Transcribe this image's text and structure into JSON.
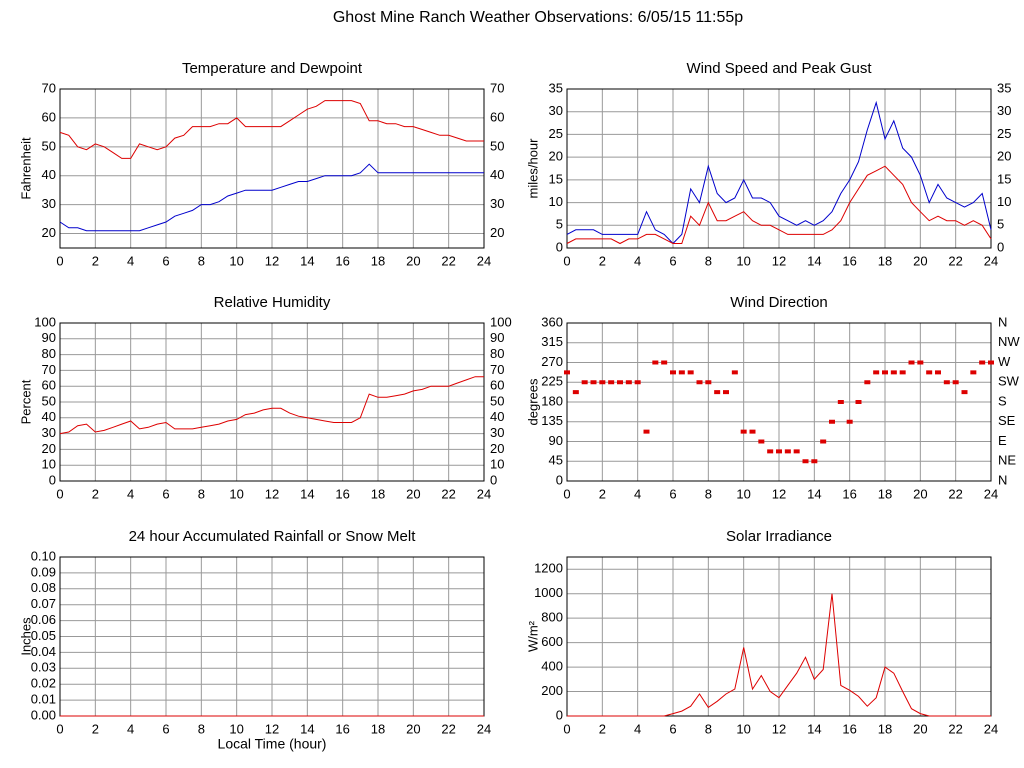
{
  "title": "Ghost Mine Ranch Weather Observations: 6/05/15 11:55p",
  "chart_data": [
    {
      "type": "line",
      "title": "Temperature and Dewpoint",
      "ylabel": "Fahrenheit",
      "grid": true,
      "right_axis": true,
      "xlim": [
        0,
        24
      ],
      "xticks": [
        0,
        2,
        4,
        6,
        8,
        10,
        12,
        14,
        16,
        18,
        20,
        22,
        24
      ],
      "ylim": [
        15,
        70
      ],
      "yticks": [
        20,
        30,
        40,
        50,
        60,
        70
      ],
      "x": [
        0,
        0.5,
        1,
        1.5,
        2,
        2.5,
        3,
        3.5,
        4,
        4.5,
        5,
        5.5,
        6,
        6.5,
        7,
        7.5,
        8,
        8.5,
        9,
        9.5,
        10,
        10.5,
        11,
        11.5,
        12,
        12.5,
        13,
        13.5,
        14,
        14.5,
        15,
        15.5,
        16,
        16.5,
        17,
        17.5,
        18,
        18.5,
        19,
        19.5,
        20,
        20.5,
        21,
        21.5,
        22,
        22.5,
        23,
        23.5,
        24
      ],
      "series": [
        {
          "color": "#dd0000",
          "values": [
            55,
            54,
            50,
            49,
            51,
            50,
            48,
            46,
            46,
            51,
            50,
            49,
            50,
            53,
            54,
            57,
            57,
            57,
            58,
            58,
            60,
            57,
            57,
            57,
            57,
            57,
            59,
            61,
            63,
            64,
            66,
            66,
            66,
            66,
            65,
            59,
            59,
            58,
            58,
            57,
            57,
            56,
            55,
            54,
            54,
            53,
            52,
            52,
            52
          ]
        },
        {
          "color": "#0000cc",
          "values": [
            24,
            22,
            22,
            21,
            21,
            21,
            21,
            21,
            21,
            21,
            22,
            23,
            24,
            26,
            27,
            28,
            30,
            30,
            31,
            33,
            34,
            35,
            35,
            35,
            35,
            36,
            37,
            38,
            38,
            39,
            40,
            40,
            40,
            40,
            41,
            44,
            41,
            41,
            41,
            41,
            41,
            41,
            41,
            41,
            41,
            41,
            41,
            41,
            41
          ]
        }
      ]
    },
    {
      "type": "line",
      "title": "Wind Speed and Peak Gust",
      "ylabel": "miles/hour",
      "grid": true,
      "right_axis": true,
      "xlim": [
        0,
        24
      ],
      "xticks": [
        0,
        2,
        4,
        6,
        8,
        10,
        12,
        14,
        16,
        18,
        20,
        22,
        24
      ],
      "ylim": [
        0,
        35
      ],
      "yticks": [
        0,
        5,
        10,
        15,
        20,
        25,
        30,
        35
      ],
      "x": [
        0,
        0.5,
        1,
        1.5,
        2,
        2.5,
        3,
        3.5,
        4,
        4.5,
        5,
        5.5,
        6,
        6.5,
        7,
        7.5,
        8,
        8.5,
        9,
        9.5,
        10,
        10.5,
        11,
        11.5,
        12,
        12.5,
        13,
        13.5,
        14,
        14.5,
        15,
        15.5,
        16,
        16.5,
        17,
        17.5,
        18,
        18.5,
        19,
        19.5,
        20,
        20.5,
        21,
        21.5,
        22,
        22.5,
        23,
        23.5,
        24
      ],
      "series": [
        {
          "color": "#0000cc",
          "values": [
            3,
            4,
            4,
            4,
            3,
            3,
            3,
            3,
            3,
            8,
            4,
            3,
            1,
            3,
            13,
            10,
            18,
            12,
            10,
            11,
            15,
            11,
            11,
            10,
            7,
            6,
            5,
            6,
            5,
            6,
            8,
            12,
            15,
            19,
            26,
            32,
            24,
            28,
            22,
            20,
            16,
            10,
            14,
            11,
            10,
            9,
            10,
            12,
            4
          ]
        },
        {
          "color": "#dd0000",
          "values": [
            1,
            2,
            2,
            2,
            2,
            2,
            1,
            2,
            2,
            3,
            3,
            2,
            1,
            1,
            7,
            5,
            10,
            6,
            6,
            7,
            8,
            6,
            5,
            5,
            4,
            3,
            3,
            3,
            3,
            3,
            4,
            6,
            10,
            13,
            16,
            17,
            18,
            16,
            14,
            10,
            8,
            6,
            7,
            6,
            6,
            5,
            6,
            5,
            2
          ]
        }
      ]
    },
    {
      "type": "line",
      "title": "Relative Humidity",
      "ylabel": "Percent",
      "grid": true,
      "right_axis": true,
      "xlim": [
        0,
        24
      ],
      "xticks": [
        0,
        2,
        4,
        6,
        8,
        10,
        12,
        14,
        16,
        18,
        20,
        22,
        24
      ],
      "ylim": [
        0,
        100
      ],
      "yticks": [
        0,
        10,
        20,
        30,
        40,
        50,
        60,
        70,
        80,
        90,
        100
      ],
      "x": [
        0,
        0.5,
        1,
        1.5,
        2,
        2.5,
        3,
        3.5,
        4,
        4.5,
        5,
        5.5,
        6,
        6.5,
        7,
        7.5,
        8,
        8.5,
        9,
        9.5,
        10,
        10.5,
        11,
        11.5,
        12,
        12.5,
        13,
        13.5,
        14,
        14.5,
        15,
        15.5,
        16,
        16.5,
        17,
        17.5,
        18,
        18.5,
        19,
        19.5,
        20,
        20.5,
        21,
        21.5,
        22,
        22.5,
        23,
        23.5,
        24
      ],
      "series": [
        {
          "color": "#dd0000",
          "values": [
            30,
            31,
            35,
            36,
            31,
            32,
            34,
            36,
            38,
            33,
            34,
            36,
            37,
            33,
            33,
            33,
            34,
            35,
            36,
            38,
            39,
            42,
            43,
            45,
            46,
            46,
            43,
            41,
            40,
            39,
            38,
            37,
            37,
            37,
            40,
            55,
            53,
            53,
            54,
            55,
            57,
            58,
            60,
            60,
            60,
            62,
            64,
            66,
            66
          ]
        }
      ]
    },
    {
      "type": "scatter",
      "title": "Wind Direction",
      "ylabel": "degrees",
      "grid": true,
      "xlim": [
        0,
        24
      ],
      "xticks": [
        0,
        2,
        4,
        6,
        8,
        10,
        12,
        14,
        16,
        18,
        20,
        22,
        24
      ],
      "ylim": [
        0,
        360
      ],
      "yticks": [
        0,
        45,
        90,
        135,
        180,
        225,
        270,
        315,
        360
      ],
      "y2lim": [
        0,
        360
      ],
      "y2ticks": [
        {
          "value": 0,
          "label": "N"
        },
        {
          "value": 45,
          "label": "NE"
        },
        {
          "value": 90,
          "label": "E"
        },
        {
          "value": 135,
          "label": "SE"
        },
        {
          "value": 180,
          "label": "S"
        },
        {
          "value": 225,
          "label": "SW"
        },
        {
          "value": 270,
          "label": "W"
        },
        {
          "value": 315,
          "label": "NW"
        },
        {
          "value": 360,
          "label": "N"
        }
      ],
      "x": [
        0,
        0.5,
        1,
        1.5,
        2,
        2.5,
        3,
        3.5,
        4,
        4.5,
        5,
        5.5,
        6,
        6.5,
        7,
        7.5,
        8,
        8.5,
        9,
        9.5,
        10,
        10.5,
        11,
        11.5,
        12,
        12.5,
        13,
        13.5,
        14,
        14.5,
        15,
        15.5,
        16,
        16.5,
        17,
        17.5,
        18,
        18.5,
        19,
        19.5,
        20,
        20.5,
        21,
        21.5,
        22,
        22.5,
        23,
        23.5,
        24
      ],
      "series": [
        {
          "color": "#dd0000",
          "values": [
            247.5,
            202.5,
            225,
            225,
            225,
            225,
            225,
            225,
            225,
            112.5,
            270,
            270,
            247.5,
            247.5,
            247.5,
            225,
            225,
            202.5,
            202.5,
            247.5,
            112.5,
            112.5,
            90,
            67.5,
            67.5,
            67.5,
            67.5,
            45,
            45,
            90,
            135,
            180,
            135,
            180,
            225,
            247.5,
            247.5,
            247.5,
            247.5,
            270,
            270,
            247.5,
            247.5,
            225,
            225,
            202.5,
            247.5,
            270,
            270
          ]
        }
      ]
    },
    {
      "type": "line",
      "title": "24 hour Accumulated Rainfall or Snow Melt",
      "ylabel": "Inches",
      "xlabel": "Local Time (hour)",
      "grid": true,
      "xlim": [
        0,
        24
      ],
      "xticks": [
        0,
        2,
        4,
        6,
        8,
        10,
        12,
        14,
        16,
        18,
        20,
        22,
        24
      ],
      "ylim": [
        0,
        0.1
      ],
      "yticks": [
        {
          "value": 0,
          "label": "0.00"
        },
        {
          "value": 0.01,
          "label": "0.01"
        },
        {
          "value": 0.02,
          "label": "0.02"
        },
        {
          "value": 0.03,
          "label": "0.03"
        },
        {
          "value": 0.04,
          "label": "0.04"
        },
        {
          "value": 0.05,
          "label": "0.05"
        },
        {
          "value": 0.06,
          "label": "0.06"
        },
        {
          "value": 0.07,
          "label": "0.07"
        },
        {
          "value": 0.08,
          "label": "0.08"
        },
        {
          "value": 0.09,
          "label": "0.09"
        },
        {
          "value": 0.1,
          "label": "0.10"
        }
      ],
      "x": [
        0,
        24
      ],
      "series": [
        {
          "color": "#dd0000",
          "values": [
            0,
            0
          ]
        }
      ]
    },
    {
      "type": "line",
      "title": "Solar Irradiance",
      "ylabel": "W/m²",
      "grid": true,
      "xlim": [
        0,
        24
      ],
      "xticks": [
        0,
        2,
        4,
        6,
        8,
        10,
        12,
        14,
        16,
        18,
        20,
        22,
        24
      ],
      "ylim": [
        0,
        1300
      ],
      "yticks": [
        0,
        200,
        400,
        600,
        800,
        1000,
        1200
      ],
      "x": [
        0,
        0.5,
        1,
        1.5,
        2,
        2.5,
        3,
        3.5,
        4,
        4.5,
        5,
        5.5,
        6,
        6.5,
        7,
        7.5,
        8,
        8.5,
        9,
        9.5,
        10,
        10.5,
        11,
        11.5,
        12,
        12.5,
        13,
        13.5,
        14,
        14.5,
        15,
        15.5,
        16,
        16.5,
        17,
        17.5,
        18,
        18.5,
        19,
        19.5,
        20,
        20.5,
        21,
        21.5,
        22,
        22.5,
        23,
        23.5,
        24
      ],
      "series": [
        {
          "color": "#dd0000",
          "values": [
            0,
            0,
            0,
            0,
            0,
            0,
            0,
            0,
            0,
            0,
            0,
            0,
            20,
            40,
            80,
            180,
            70,
            120,
            180,
            220,
            560,
            220,
            330,
            200,
            150,
            250,
            350,
            480,
            300,
            380,
            1000,
            250,
            210,
            160,
            80,
            150,
            400,
            350,
            200,
            60,
            20,
            0,
            0,
            0,
            0,
            0,
            0,
            0,
            0
          ]
        }
      ]
    }
  ]
}
